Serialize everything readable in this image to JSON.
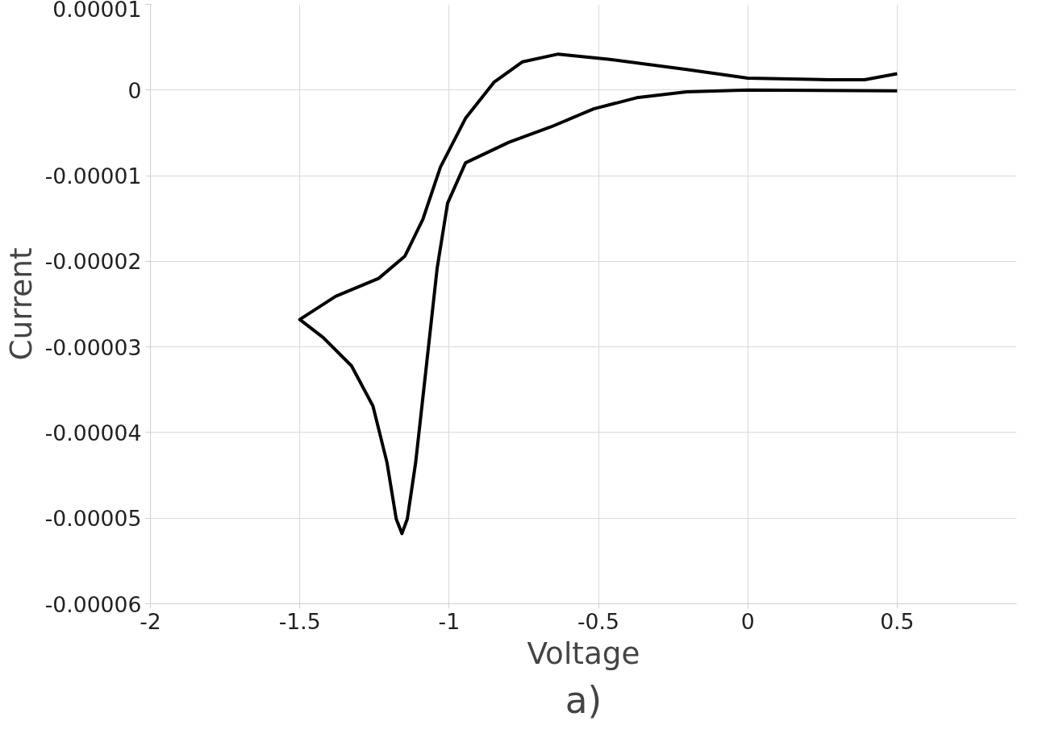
{
  "chart_data": {
    "type": "line",
    "xlabel": "Voltage",
    "ylabel": "Current",
    "annotations": [
      "a)"
    ],
    "xlim": [
      -2,
      0.9
    ],
    "xticks": [
      -2,
      -1.5,
      -1,
      -0.5,
      0,
      0.5
    ],
    "ylim": [
      -6e-05,
      1e-05
    ],
    "yticks": [
      {
        "value": 1e-05,
        "label": "0.00001"
      },
      {
        "value": 0,
        "label": "0"
      },
      {
        "value": -1e-05,
        "label": "-0.00001"
      },
      {
        "value": -2e-05,
        "label": "-0.00002"
      },
      {
        "value": -3e-05,
        "label": "-0.00003"
      },
      {
        "value": -4e-05,
        "label": "-0.00004"
      },
      {
        "value": -5e-05,
        "label": "-0.00005"
      },
      {
        "value": -6e-05,
        "label": "-0.00006"
      }
    ],
    "grid": true,
    "marker": "none",
    "line_style": "solid",
    "series": [
      {
        "color": "#000000",
        "x": [
          0.5,
          0,
          -0.205,
          -0.372,
          -0.516,
          -0.659,
          -0.8,
          -0.945,
          -1.005,
          -1.04,
          -1.076,
          -1.112,
          -1.14,
          -1.158,
          -1.177,
          -1.208,
          -1.255,
          -1.327,
          -1.422,
          -1.5,
          -1.38,
          -1.236,
          -1.148,
          -1.088,
          -1.029,
          -0.945,
          -0.85,
          -0.754,
          -0.635,
          -0.468,
          -0.205,
          0,
          0.272,
          0.391,
          0.5
        ],
        "values": [
          -1e-07,
          0,
          -2e-07,
          -9e-07,
          -2.2e-06,
          -4.3e-06,
          -6.1e-06,
          -8.5e-06,
          -1.32e-05,
          -2.08e-05,
          -3.22e-05,
          -4.35e-05,
          -5.01e-05,
          -5.18e-05,
          -5.01e-05,
          -4.35e-05,
          -3.69e-05,
          -3.22e-05,
          -2.89e-05,
          -2.68e-05,
          -2.41e-05,
          -2.2e-05,
          -1.94e-05,
          -1.51e-05,
          -9e-06,
          -3.3e-06,
          9e-07,
          3.3e-06,
          4.2e-06,
          3.6e-06,
          2.4e-06,
          1.4e-06,
          1.2e-06,
          1.2e-06,
          1.9e-06
        ]
      }
    ]
  }
}
